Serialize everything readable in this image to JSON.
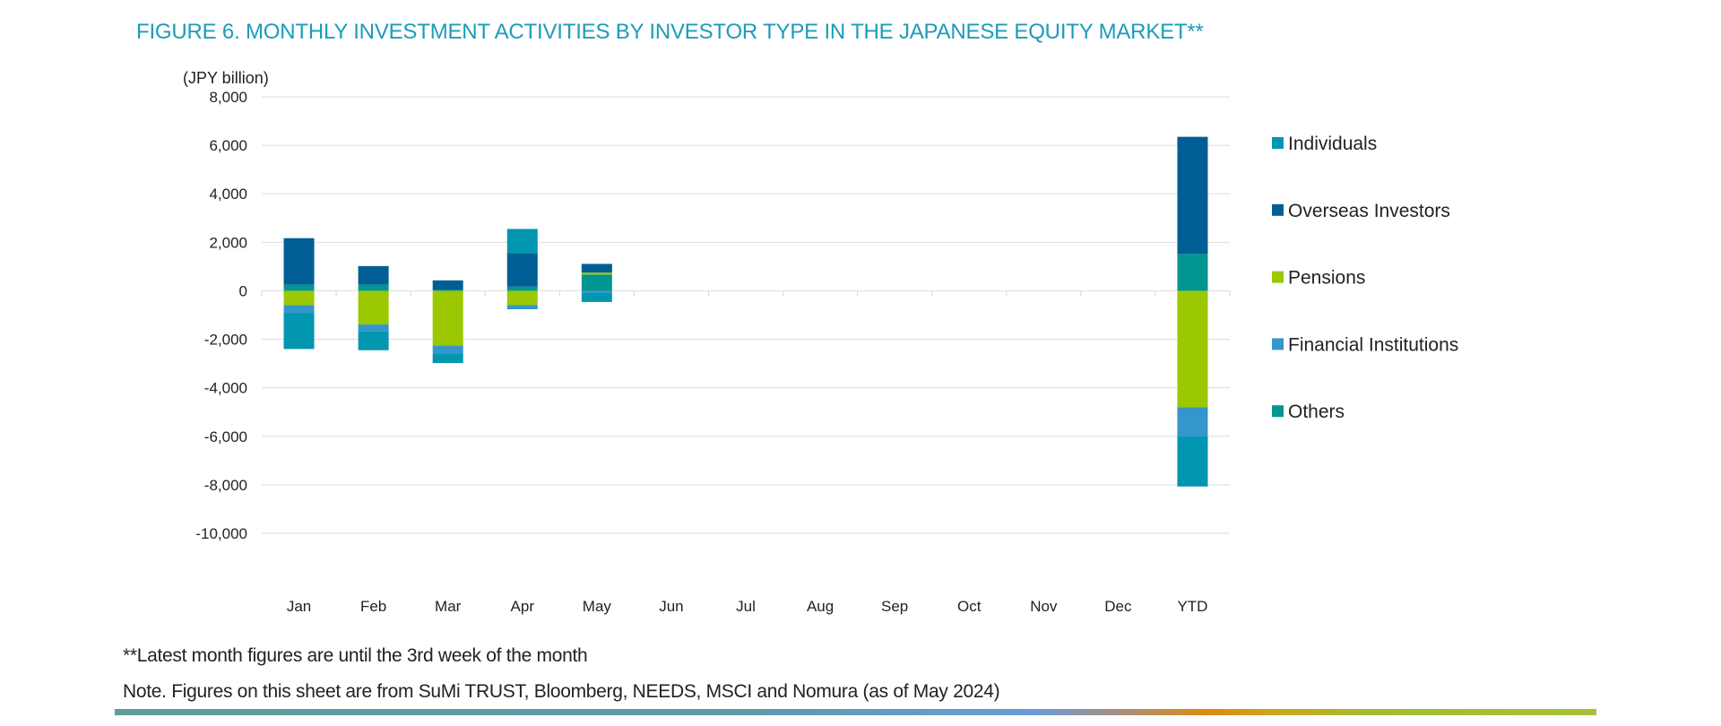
{
  "chart_data": {
    "type": "bar",
    "stacked": true,
    "title": "FIGURE 6. MONTHLY INVESTMENT ACTIVITIES BY INVESTOR TYPE IN THE JAPANESE EQUITY MARKET**",
    "ylabel": "(JPY billion)",
    "xlabel": "",
    "ylim": [
      -10000,
      8000
    ],
    "yticks": [
      "8,000",
      "6,000",
      "4,000",
      "2,000",
      "0",
      "-2,000",
      "-4,000",
      "-6,000",
      "-8,000",
      "-10,000"
    ],
    "ytick_values": [
      8000,
      6000,
      4000,
      2000,
      0,
      -2000,
      -4000,
      -6000,
      -8000,
      -10000
    ],
    "grid": true,
    "legend_position": "right",
    "categories": [
      "Jan",
      "Feb",
      "Mar",
      "Apr",
      "May",
      "Jun",
      "Jul",
      "Aug",
      "Sep",
      "Oct",
      "Nov",
      "Dec",
      "YTD"
    ],
    "series": [
      {
        "name": "Individuals",
        "color": "#0096b0",
        "values": [
          -1490,
          -770,
          -400,
          990,
          -380,
          null,
          null,
          null,
          null,
          null,
          null,
          null,
          -2060
        ]
      },
      {
        "name": "Overseas Investors",
        "color": "#005e94",
        "values": [
          1920,
          770,
          400,
          1390,
          360,
          null,
          null,
          null,
          null,
          null,
          null,
          null,
          4830
        ]
      },
      {
        "name": "Pensions",
        "color": "#9bc800",
        "values": [
          -590,
          -1390,
          -2260,
          -590,
          80,
          null,
          null,
          null,
          null,
          null,
          null,
          null,
          -4800
        ]
      },
      {
        "name": "Financial Institutions",
        "color": "#3596cb",
        "values": [
          -320,
          -290,
          -320,
          -170,
          -80,
          null,
          null,
          null,
          null,
          null,
          null,
          null,
          -1210
        ]
      },
      {
        "name": "Others",
        "color": "#00968f",
        "values": [
          250,
          250,
          30,
          170,
          670,
          null,
          null,
          null,
          null,
          null,
          null,
          null,
          1520
        ]
      }
    ]
  },
  "footnotes": {
    "latest": "**Latest month figures are until the 3rd week of the month",
    "note": "Note. Figures on this sheet are from SuMi TRUST, Bloomberg, NEEDS, MSCI and Nomura (as of May 2024)"
  }
}
